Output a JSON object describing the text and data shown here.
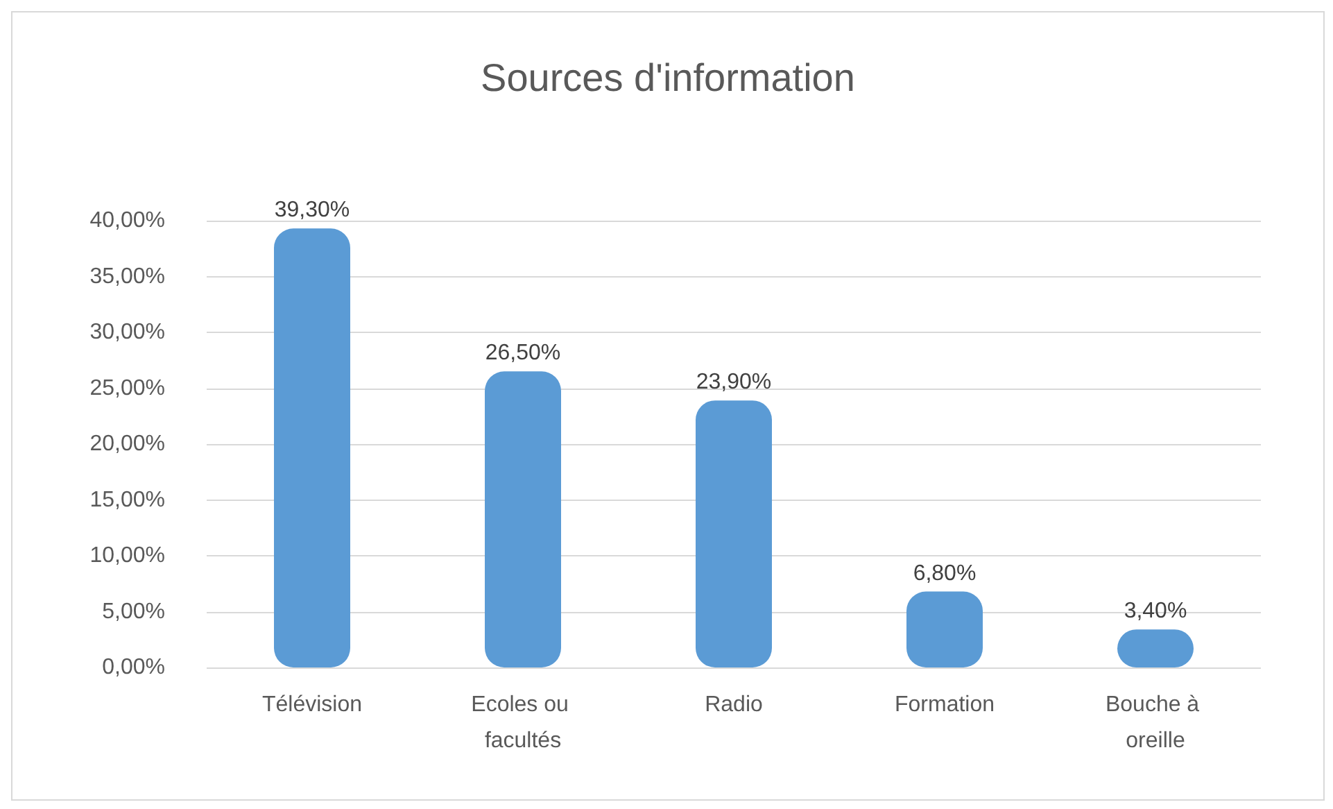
{
  "chart_data": {
    "type": "bar",
    "title": "Sources d'information",
    "categories": [
      "Télévision",
      "Ecoles ou facultés",
      "Radio",
      "Formation",
      "Bouche à oreille"
    ],
    "values": [
      39.3,
      26.5,
      23.9,
      6.8,
      3.4
    ],
    "value_labels": [
      "39,30%",
      "26,50%",
      "23,90%",
      "6,80%",
      "3,40%"
    ],
    "color": "#5b9bd5",
    "ylim": [
      0,
      40
    ],
    "yticks": [
      {
        "value": 0,
        "label": "0,00%"
      },
      {
        "value": 5,
        "label": "5,00%"
      },
      {
        "value": 10,
        "label": "10,00%"
      },
      {
        "value": 15,
        "label": "15,00%"
      },
      {
        "value": 20,
        "label": "20,00%"
      },
      {
        "value": 25,
        "label": "25,00%"
      },
      {
        "value": 30,
        "label": "30,00%"
      },
      {
        "value": 35,
        "label": "35,00%"
      },
      {
        "value": 40,
        "label": "40,00%"
      }
    ],
    "grid": "y"
  }
}
